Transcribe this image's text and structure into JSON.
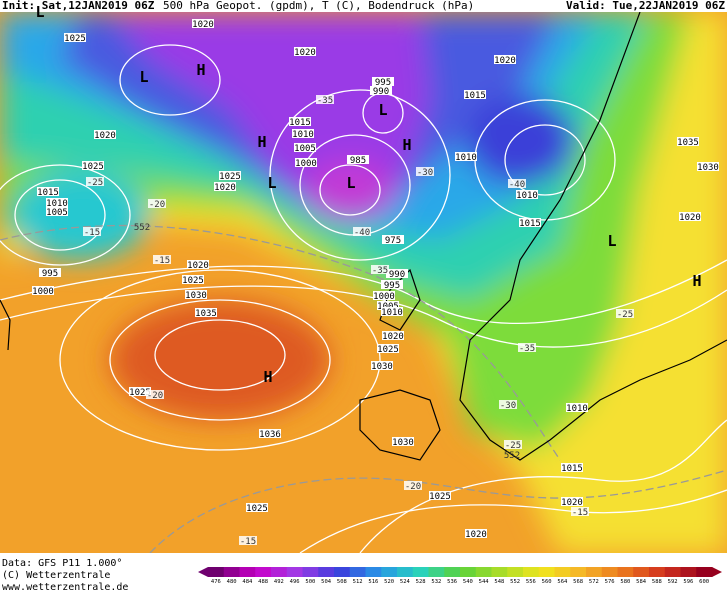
{
  "header": {
    "init": "Init: Sat,12JAN2019 06Z",
    "title": "500 hPa Geopot. (gpdm), T (C), Bodendruck (hPa)",
    "valid": "Valid: Tue,22JAN2019 06Z"
  },
  "footer": {
    "data": "Data: GFS P11 1.000°",
    "copyright": "(C) Wetterzentrale",
    "url": "www.wetterzentrale.de"
  },
  "colorbar": {
    "ticks": [
      476,
      480,
      484,
      488,
      492,
      496,
      500,
      504,
      508,
      512,
      516,
      520,
      524,
      528,
      532,
      536,
      540,
      544,
      548,
      552,
      556,
      560,
      564,
      568,
      572,
      576,
      580,
      584,
      588,
      592,
      596,
      600
    ]
  },
  "pressure_labels": [
    "1020",
    "1025",
    "1020",
    "995",
    "990",
    "1020",
    "1015",
    "1015",
    "1010",
    "1005",
    "1000",
    "985",
    "1025",
    "1020",
    "1010",
    "1010",
    "1035",
    "1030",
    "1020",
    "1025",
    "1015",
    "1010",
    "1005",
    "1020",
    "1015",
    "975",
    "995",
    "1000",
    "1020",
    "1025",
    "1030",
    "990",
    "995",
    "1000",
    "1005",
    "1010",
    "1035",
    "1020",
    "1025",
    "1030",
    "1025",
    "1036",
    "1010",
    "1030",
    "1015",
    "1025",
    "1020",
    "1025",
    "1020"
  ],
  "temperature_labels": [
    "-35",
    "-30",
    "-40",
    "-25",
    "-20",
    "-15",
    "-40",
    "-35",
    "-25",
    "-35",
    "-30",
    "-25",
    "-20",
    "-20",
    "-15",
    "-15",
    "-15"
  ],
  "geopotential_labels": [
    "552",
    "552"
  ],
  "pressure_centers": [
    "L",
    "L",
    "H",
    "L",
    "H",
    "H",
    "L",
    "L",
    "L",
    "H",
    "H"
  ]
}
